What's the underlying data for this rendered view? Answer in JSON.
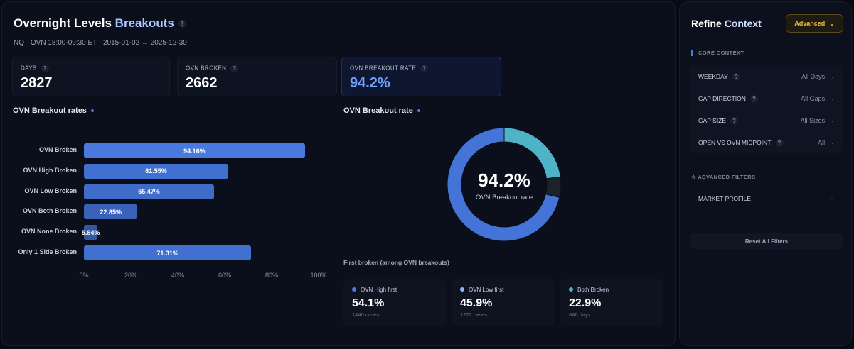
{
  "header": {
    "title_main": "Overnight Levels",
    "title_accent": "Breakouts",
    "help": "?",
    "subtitle": "NQ · OVN 18:00-09:30 ET · 2015-01-02 → 2025-12-30"
  },
  "stats": [
    {
      "label": "DAYS",
      "value": "2827"
    },
    {
      "label": "OVN BROKEN",
      "value": "2662"
    },
    {
      "label": "OVN BREAKOUT RATE",
      "value": "94.2%"
    }
  ],
  "bar_section": {
    "title": "OVN Breakout rates"
  },
  "donut_section": {
    "title": "OVN Breakout rate",
    "center_value": "94.2%",
    "center_label": "OVN Breakout rate"
  },
  "chart_data": [
    {
      "type": "bar",
      "orientation": "horizontal",
      "title": "OVN Breakout rates",
      "categories": [
        "OVN Broken",
        "OVN High Broken",
        "OVN Low Broken",
        "OVN Both Broken",
        "OVN None Broken",
        "Only 1 Side Broken"
      ],
      "values": [
        94.16,
        61.55,
        55.47,
        22.85,
        5.84,
        71.31
      ],
      "labels": [
        "94.16%",
        "61.55%",
        "55.47%",
        "22.85%",
        "5.84%",
        "71.31%"
      ],
      "xlim": [
        0,
        100
      ],
      "xticks": [
        "0%",
        "20%",
        "40%",
        "60%",
        "80%",
        "100%"
      ],
      "color": "#4574d8"
    },
    {
      "type": "pie",
      "variant": "donut",
      "title": "OVN Breakout rate",
      "slices": [
        {
          "value": 22.85,
          "color": "#4fb3c8"
        },
        {
          "value": 5.84,
          "color": "#1a2328"
        },
        {
          "value": 71.31,
          "color": "#4574d8"
        }
      ]
    }
  ],
  "first_broken": {
    "title": "First broken (among OVN breakouts)",
    "cards": [
      {
        "label": "OVN High first",
        "value": "54.1%",
        "count": "1440 cases",
        "color": "#4a78e0"
      },
      {
        "label": "OVN Low first",
        "value": "45.9%",
        "count": "1222 cases",
        "color": "#8fb4ff"
      },
      {
        "label": "Both Broken",
        "value": "22.9%",
        "count": "646 days",
        "color": "#4fb3c8"
      }
    ]
  },
  "sidebar": {
    "title_main": "Refine",
    "title_accent": "Context",
    "advanced_button": "Advanced",
    "core_label": "CORE CONTEXT",
    "filters": [
      {
        "label": "WEEKDAY",
        "value": "All Days"
      },
      {
        "label": "GAP DIRECTION",
        "value": "All Gaps"
      },
      {
        "label": "GAP SIZE",
        "value": "All Sizes"
      },
      {
        "label": "OPEN VS OVN MIDPOINT",
        "value": "All"
      }
    ],
    "advanced_label": "ADVANCED FILTERS",
    "market_profile": "MARKET PROFILE",
    "reset": "Reset All Filters"
  }
}
